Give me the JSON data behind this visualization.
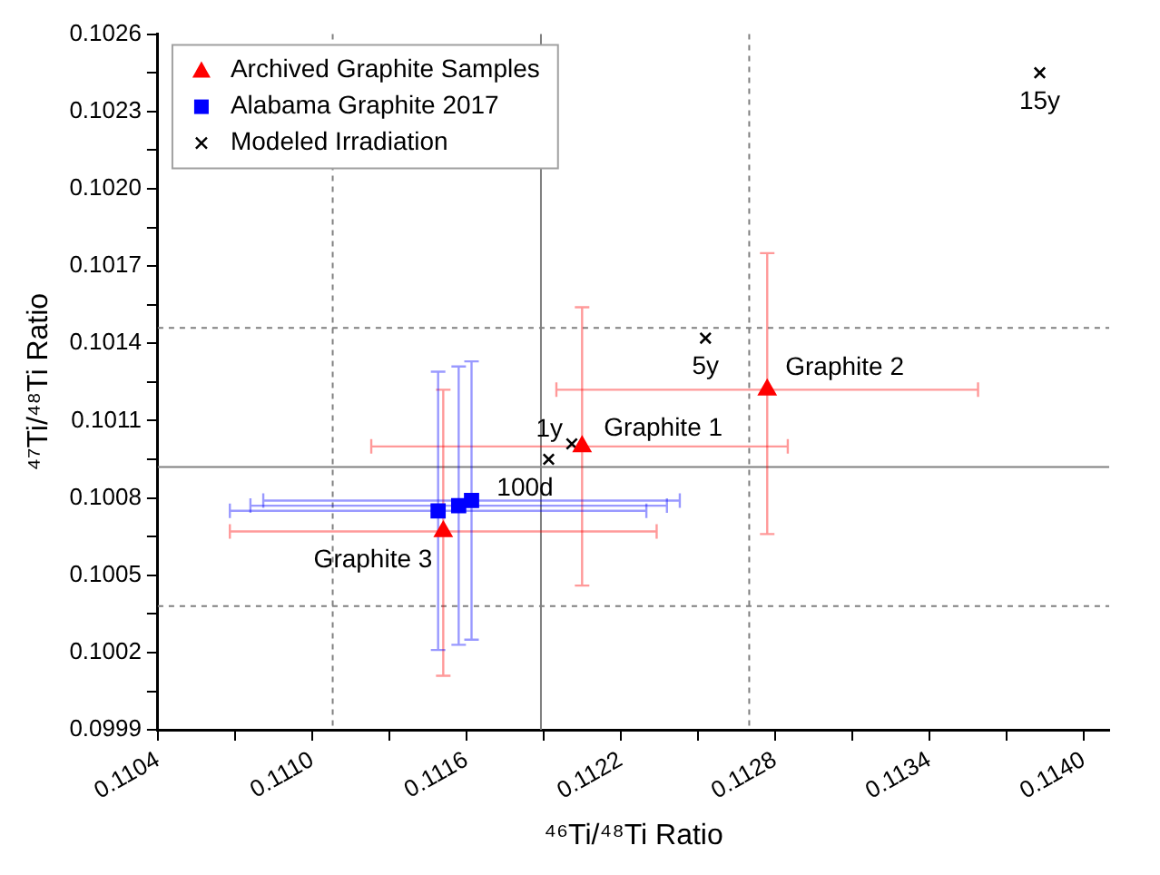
{
  "chart_data": {
    "type": "scatter",
    "xlabel": "⁴⁶Ti/⁴⁸Ti Ratio",
    "ylabel": "⁴⁷Ti/⁴⁸Ti Ratio",
    "xlim": [
      0.1104,
      0.1141
    ],
    "xticks": [
      0.1104,
      {
        "value": 0.1107,
        "label": null
      },
      {
        "value": 0.111,
        "label": "0.1110"
      },
      {
        "value": 0.1113,
        "label": null
      },
      0.1116,
      {
        "value": 0.1119,
        "label": null
      },
      0.1122,
      {
        "value": 0.1125,
        "label": null
      },
      0.1128,
      {
        "value": 0.1131,
        "label": null
      },
      0.1134,
      {
        "value": 0.1137,
        "label": null
      },
      {
        "value": 0.114,
        "label": "0.1140"
      }
    ],
    "ylim": [
      0.0999,
      0.1026
    ],
    "yticks": [
      0.0999,
      {
        "value": 0.10005,
        "label": null
      },
      0.1002,
      {
        "value": 0.10035,
        "label": null
      },
      0.1005,
      {
        "value": 0.10065,
        "label": null
      },
      0.1008,
      {
        "value": 0.10095,
        "label": null
      },
      0.1011,
      {
        "value": 0.10125,
        "label": null
      },
      0.1014,
      {
        "value": 0.10155,
        "label": null
      },
      0.1017,
      {
        "value": 0.10185,
        "label": null
      },
      {
        "value": 0.102,
        "label": "0.1020"
      },
      {
        "value": 0.10215,
        "label": null
      },
      0.1023,
      {
        "value": 0.10245,
        "label": null
      },
      0.1026
    ],
    "grid": false,
    "legend": "top left",
    "series": [
      {
        "name": "Archived Graphite Samples",
        "color": "#ff0000",
        "marker": "triangle",
        "x": [
          0.11205,
          0.11277,
          0.11151
        ],
        "values": [
          0.101,
          0.10122,
          0.10067
        ],
        "errors": [
          [
            0.10046,
            0.10154
          ],
          [
            0.10066,
            0.10175
          ],
          [
            0.10011,
            0.10122
          ]
        ],
        "xerrors": [
          [
            0.11123,
            0.11285
          ],
          [
            0.11195,
            0.11359
          ],
          [
            0.11068,
            0.11234
          ]
        ]
      },
      {
        "name": "Alabama Graphite 2017",
        "color": "#0000ff",
        "marker": "square",
        "x": [
          0.11149,
          0.11157,
          0.11162
        ],
        "values": [
          0.10075,
          0.10077,
          0.10079
        ],
        "errors": [
          [
            0.10021,
            0.10129
          ],
          [
            0.10023,
            0.10131
          ],
          [
            0.10025,
            0.10133
          ]
        ],
        "xerrors": [
          [
            0.11068,
            0.1123
          ],
          [
            0.11076,
            0.11238
          ],
          [
            0.11081,
            0.11243
          ]
        ]
      },
      {
        "name": "Modeled Irradiation",
        "color": "#000000",
        "marker": "cross",
        "x": [
          0.11192,
          0.11201,
          0.11253,
          0.11383
        ],
        "values": [
          0.10095,
          0.10101,
          0.10142,
          0.10245
        ]
      }
    ],
    "ref_lines": [
      {
        "axis": "x",
        "value": 0.11189,
        "color": "#808080",
        "line_style": "solid"
      },
      {
        "axis": "x",
        "value": 0.11108,
        "color": "#808080",
        "line_style": "dashed"
      },
      {
        "axis": "x",
        "value": 0.1127,
        "color": "#808080",
        "line_style": "dashed"
      },
      {
        "axis": "y",
        "value": 0.10092,
        "color": "#808080",
        "line_style": "solid"
      },
      {
        "axis": "y",
        "value": 0.10146,
        "color": "#808080",
        "line_style": "dashed"
      },
      {
        "axis": "y",
        "value": 0.10038,
        "color": "#808080",
        "line_style": "dashed"
      }
    ],
    "annotations": [
      {
        "text": "Graphite 1",
        "x": 0.11205,
        "y": 0.101
      },
      {
        "text": "Graphite 2",
        "x": 0.11277,
        "y": 0.10122
      },
      {
        "text": "Graphite 3",
        "x": 0.11151,
        "y": 0.10067
      },
      {
        "text": "1y",
        "x": 0.11201,
        "y": 0.10101
      },
      {
        "text": "100d",
        "x": 0.11192,
        "y": 0.10095
      },
      {
        "text": "5y",
        "x": 0.11253,
        "y": 0.10142
      },
      {
        "text": "15y",
        "x": 0.11383,
        "y": 0.10245
      }
    ]
  }
}
